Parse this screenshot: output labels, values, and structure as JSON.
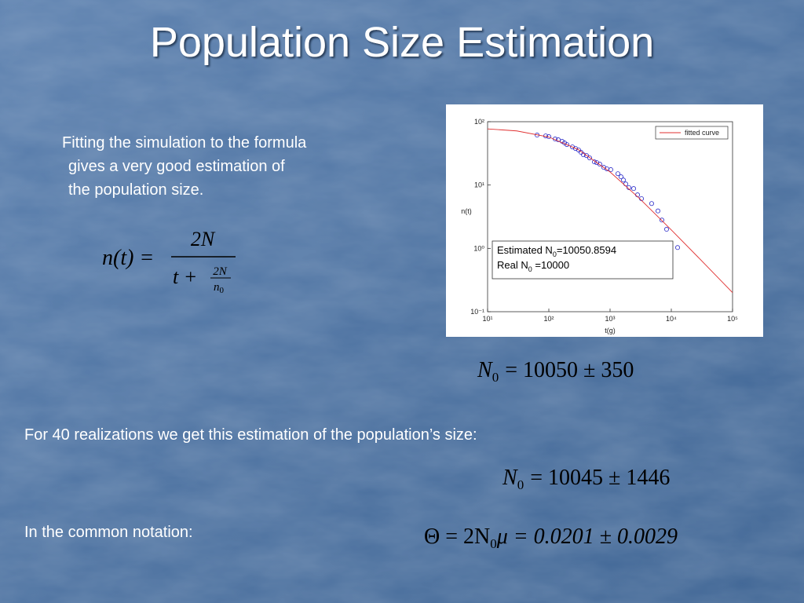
{
  "title": "Population Size Estimation",
  "intro": [
    "Fitting the simulation to the formula",
    "gives a very good estimation of",
    "the population size."
  ],
  "formula": {
    "lhs": "n(t) =",
    "numerator": "2N",
    "denominator": "t +",
    "inner_numerator": "2N",
    "inner_denominator": "n",
    "inner_sub": "0"
  },
  "estimate_single": {
    "symbol": "N",
    "sub": "0",
    "rhs": "= 10050 ± 350"
  },
  "realizations_text": "For 40 realizations we get this estimation of  the population’s size:",
  "estimate_40": {
    "symbol": "N",
    "sub": "0",
    "rhs": "= 10045 ± 1446"
  },
  "notation_text": "In the common notation:",
  "theta": {
    "pre": "Θ = 2N",
    "sub": "0",
    "post": "μ = 0.0201 ± 0.0029"
  },
  "chart_data": {
    "type": "scatter",
    "x_label": "t(g)",
    "y_label": "n(t)",
    "xscale": "log",
    "yscale": "log",
    "xlim": [
      10,
      100000
    ],
    "ylim": [
      0.1,
      100
    ],
    "xticks": [
      {
        "value": 10,
        "label": "10¹"
      },
      {
        "value": 100,
        "label": "10²"
      },
      {
        "value": 1000,
        "label": "10³"
      },
      {
        "value": 10000,
        "label": "10⁴"
      },
      {
        "value": 100000,
        "label": "10⁵"
      }
    ],
    "yticks": [
      {
        "value": 0.1,
        "label": "10⁻¹"
      },
      {
        "value": 1,
        "label": "10⁰"
      },
      {
        "value": 10,
        "label": "10¹"
      },
      {
        "value": 100,
        "label": "10²"
      }
    ],
    "legend": "upper right",
    "series": [
      {
        "color": "#2b2bc8",
        "x": [
          64.3,
          88.9,
          100,
          126.7,
          142.6,
          165.2,
          180.4,
          197.2,
          242.7,
          272.9,
          306.9,
          335.7,
          366.4,
          412.1,
          464.5,
          554.6,
          605.3,
          680.8,
          788.9,
          889,
          1030,
          1343,
          1510,
          1652,
          1803,
          2032,
          2427,
          2811,
          3258,
          4775,
          6053,
          7015,
          8375,
          12670
        ],
        "values": [
          61.5,
          59.7,
          58.1,
          53.3,
          51.8,
          48.9,
          46.2,
          43.6,
          40,
          37.8,
          35.7,
          32.8,
          30.1,
          29.2,
          26.8,
          23.2,
          22.6,
          21.3,
          19,
          18,
          17.5,
          15.1,
          13.5,
          12,
          10.4,
          9.1,
          8.8,
          7,
          6.1,
          5.1,
          3.9,
          2.8,
          2,
          1.03
        ]
      },
      {
        "name": "fitted curve",
        "color": "#e03030",
        "line": true,
        "x": [
          10,
          30,
          100,
          300,
          1000,
          3000,
          10000,
          30000,
          100000
        ],
        "values": [
          77,
          71.5,
          57.3,
          36.5,
          16.1,
          6.18,
          1.96,
          0.664,
          0.2005
        ]
      }
    ],
    "annotation": [
      {
        "text": "Estimated N",
        "sub": "0",
        "rest": "=10050.8594"
      },
      {
        "text": "Real N",
        "sub": "0",
        "rest": " =10000"
      }
    ]
  }
}
